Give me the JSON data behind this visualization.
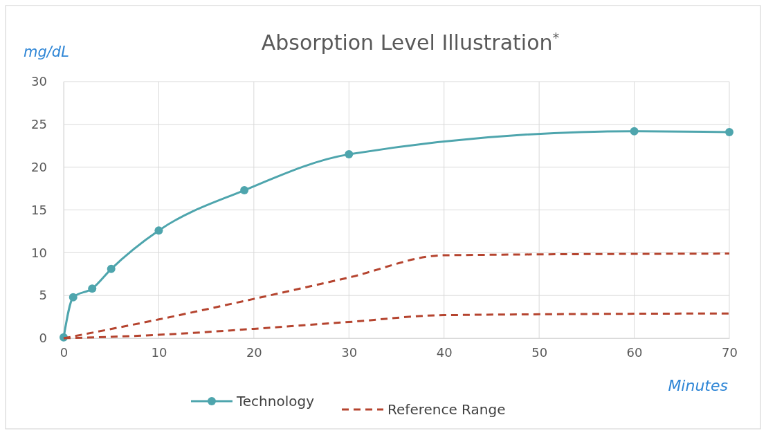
{
  "chart_data": {
    "type": "line",
    "title": "Absorption Level Illustration$^{*}$",
    "xlabel": "Minutes",
    "ylabel": "mg/dL",
    "xlim": [
      0,
      70
    ],
    "xticks": [
      0,
      10,
      20,
      30,
      40,
      50,
      60,
      70
    ],
    "ylim": [
      0,
      30
    ],
    "yticks": [
      0,
      5,
      10,
      15,
      20,
      25,
      30
    ],
    "grid": true,
    "legend": "bottom",
    "series": [
      {
        "name": "Technology",
        "color": "#4ea5ad",
        "marker": "circle",
        "line_style": "solid",
        "x": [
          0,
          1,
          3,
          5,
          10,
          19,
          30,
          60,
          70
        ],
        "values": [
          0.1,
          4.8,
          5.8,
          8.1,
          12.6,
          17.3,
          21.5,
          24.2,
          24.1
        ]
      },
      {
        "name": "Reference Range",
        "color": "#b5442f",
        "marker": "none",
        "line_style": "dashed",
        "x": [
          0,
          10,
          20,
          30,
          40,
          70
        ],
        "values": [
          0,
          2.2,
          4.6,
          7.1,
          9.7,
          9.9
        ]
      },
      {
        "color": "#b5442f",
        "marker": "none",
        "line_style": "dashed",
        "x": [
          0,
          10,
          20,
          30,
          40,
          70
        ],
        "values": [
          0,
          0.4,
          1.1,
          1.9,
          2.7,
          2.9
        ]
      }
    ]
  }
}
